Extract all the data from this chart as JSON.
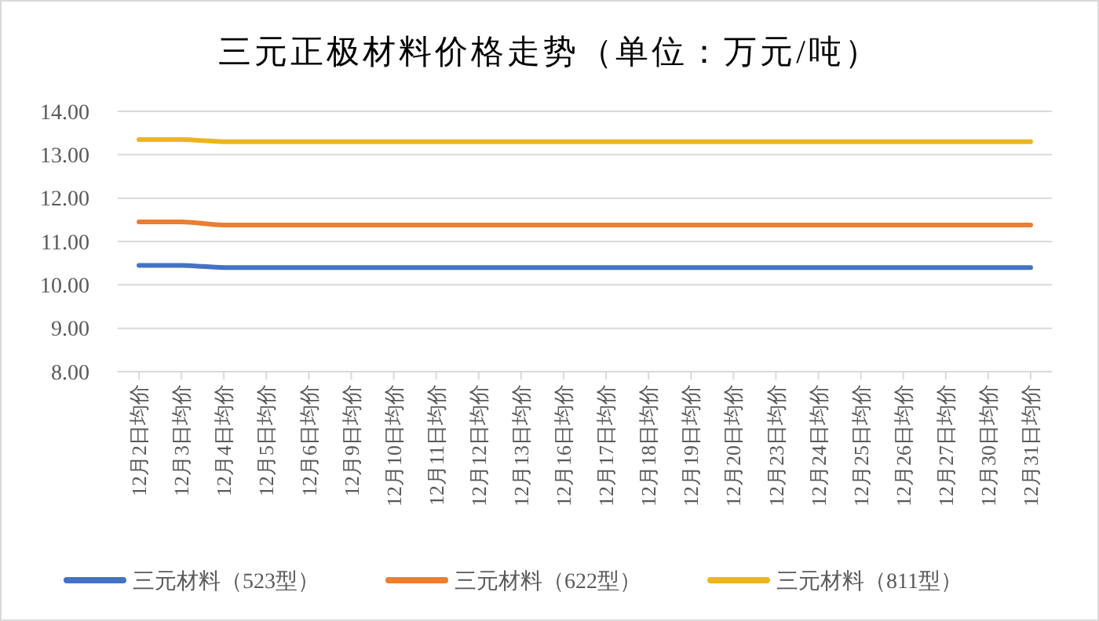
{
  "chart_data": {
    "type": "line",
    "title": "三元正极材料价格走势（单位：万元/吨）",
    "categories": [
      "12月2日均价",
      "12月3日均价",
      "12月4日均价",
      "12月5日均价",
      "12月6日均价",
      "12月9日均价",
      "12月10日均价",
      "12月11日均价",
      "12月12日均价",
      "12月13日均价",
      "12月16日均价",
      "12月17日均价",
      "12月18日均价",
      "12月19日均价",
      "12月20日均价",
      "12月23日均价",
      "12月24日均价",
      "12月25日均价",
      "12月26日均价",
      "12月27日均价",
      "12月30日均价",
      "12月31日均价"
    ],
    "series": [
      {
        "name": "三元材料（523型）",
        "color": "#4472c4",
        "values": [
          10.45,
          10.45,
          10.4,
          10.4,
          10.4,
          10.4,
          10.4,
          10.4,
          10.4,
          10.4,
          10.4,
          10.4,
          10.4,
          10.4,
          10.4,
          10.4,
          10.4,
          10.4,
          10.4,
          10.4,
          10.4,
          10.4
        ]
      },
      {
        "name": "三元材料（622型）",
        "color": "#ed7d31",
        "values": [
          11.45,
          11.45,
          11.38,
          11.38,
          11.38,
          11.38,
          11.38,
          11.38,
          11.38,
          11.38,
          11.38,
          11.38,
          11.38,
          11.38,
          11.38,
          11.38,
          11.38,
          11.38,
          11.38,
          11.38,
          11.38,
          11.38
        ]
      },
      {
        "name": "三元材料（811型）",
        "color": "#ecb520",
        "values": [
          13.35,
          13.35,
          13.3,
          13.3,
          13.3,
          13.3,
          13.3,
          13.3,
          13.3,
          13.3,
          13.3,
          13.3,
          13.3,
          13.3,
          13.3,
          13.3,
          13.3,
          13.3,
          13.3,
          13.3,
          13.3,
          13.3
        ]
      }
    ],
    "ylim": [
      8,
      14
    ],
    "yticks": [
      {
        "value": 8,
        "label": "8.00"
      },
      {
        "value": 9,
        "label": "9.00"
      },
      {
        "value": 10,
        "label": "10.00"
      },
      {
        "value": 11,
        "label": "11.00"
      },
      {
        "value": 12,
        "label": "12.00"
      },
      {
        "value": 13,
        "label": "13.00"
      },
      {
        "value": 14,
        "label": "14.00"
      }
    ],
    "grid": "y",
    "legend": "bottom",
    "marker": "none",
    "line_style": "solid"
  }
}
